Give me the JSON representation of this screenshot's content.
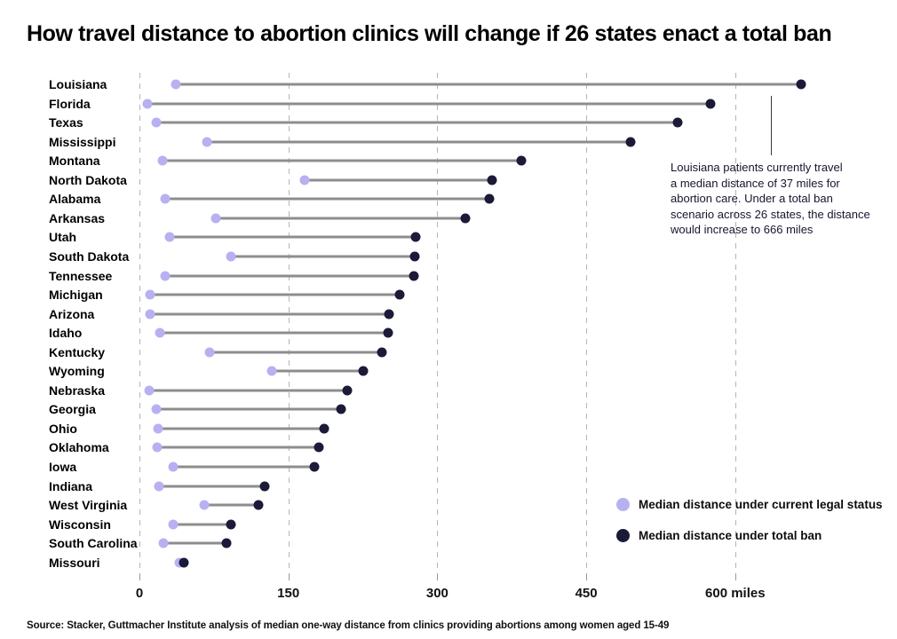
{
  "title": "How travel distance to abortion clinics will change if 26 states enact a total ban",
  "source": "Source: Stacker, Guttmacher Institute analysis of median one-way distance from clinics providing abortions among women aged 15-49",
  "legend": {
    "current_label": "Median distance under current legal status",
    "ban_label": "Median distance under total ban"
  },
  "annotation": {
    "lines": [
      "Louisiana patients currently travel",
      "a median distance of 37 miles for",
      "abortion care. Under a total ban",
      "scenario across 26 states, the distance",
      "would increase to 666 miles"
    ]
  },
  "colors": {
    "current_dot": "#b7b1f2",
    "ban_dot": "#1b1a38",
    "connector": "#8d8d8d",
    "gridline": "#b5b5b5"
  },
  "chart_data": {
    "type": "dumbbell",
    "title": "How travel distance to abortion clinics will change if 26 states enact a total ban",
    "unit": "miles",
    "xlim": [
      0,
      700
    ],
    "grid": "vertical-dashed",
    "legend_position": "bottom-right",
    "categories": [
      "Louisiana",
      "Florida",
      "Texas",
      "Mississippi",
      "Montana",
      "North Dakota",
      "Alabama",
      "Arkansas",
      "Utah",
      "South Dakota",
      "Tennessee",
      "Michigan",
      "Arizona",
      "Idaho",
      "Kentucky",
      "Wyoming",
      "Nebraska",
      "Georgia",
      "Ohio",
      "Oklahoma",
      "Iowa",
      "Indiana",
      "West Virginia",
      "Wisconsin",
      "South Carolina",
      "Missouri"
    ],
    "series": [
      {
        "name": "Median distance under current legal status",
        "color": "#b7b1f2",
        "values": [
          37,
          8,
          17,
          68,
          23,
          166,
          26,
          77,
          30,
          92,
          26,
          11,
          11,
          21,
          71,
          133,
          10,
          17,
          19,
          18,
          34,
          20,
          65,
          34,
          24,
          40
        ]
      },
      {
        "name": "Median distance under total ban",
        "color": "#1b1a38",
        "values": [
          666,
          575,
          542,
          495,
          385,
          355,
          352,
          328,
          278,
          277,
          276,
          262,
          251,
          250,
          244,
          225,
          209,
          203,
          186,
          181,
          176,
          126,
          120,
          92,
          88,
          45
        ]
      }
    ],
    "ticks": [
      {
        "value": 0,
        "label": "0"
      },
      {
        "value": 150,
        "label": "150"
      },
      {
        "value": 300,
        "label": "300"
      },
      {
        "value": 450,
        "label": "450"
      },
      {
        "value": 600,
        "label": "600 miles"
      }
    ],
    "annotation_highlight": {
      "state": "Louisiana",
      "current": 37,
      "ban": 666
    }
  }
}
